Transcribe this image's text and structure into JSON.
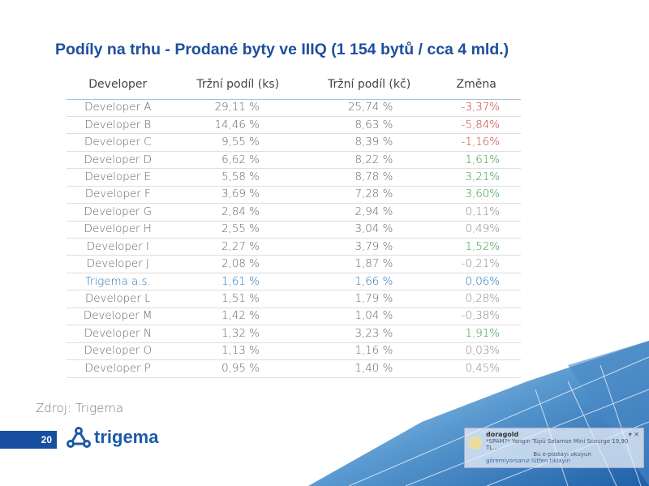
{
  "title": "Podíly na trhu - Prodané byty ve IIIQ (1 154 bytů / cca 4 mld.)",
  "table": {
    "headers": [
      "Developer",
      "Tržní podíl (ks)",
      "Tržní podíl (kč)",
      "Změna"
    ],
    "rows": [
      [
        "Developer A",
        "29,11 %",
        "25,74 %",
        "-3,37%",
        "neg"
      ],
      [
        "Developer B",
        "14,46 %",
        "8,63 %",
        "-5,84%",
        "neg"
      ],
      [
        "Developer C",
        "9,55 %",
        "8,39 %",
        "-1,16%",
        "neg"
      ],
      [
        "Developer D",
        "6,62 %",
        "8,22 %",
        "1,61%",
        "pos"
      ],
      [
        "Developer E",
        "5,58 %",
        "8,78 %",
        "3,21%",
        "pos"
      ],
      [
        "Developer F",
        "3,69 %",
        "7,28 %",
        "3,60%",
        "pos"
      ],
      [
        "Developer G",
        "2,84 %",
        "2,94 %",
        "0,11%",
        "neu"
      ],
      [
        "Developer H",
        "2,55 %",
        "3,04 %",
        "0,49%",
        "neu"
      ],
      [
        "Developer I",
        "2,27 %",
        "3,79 %",
        "1,52%",
        "pos"
      ],
      [
        "Developer J",
        "2,08 %",
        "1,87 %",
        "-0,21%",
        "neu"
      ],
      [
        "Trigema a.s.",
        "1,61 %",
        "1,66 %",
        "0,06%",
        "hl"
      ],
      [
        "Developer L",
        "1,51 %",
        "1,79 %",
        "0,28%",
        "neu"
      ],
      [
        "Developer M",
        "1,42 %",
        "1,04 %",
        "-0,38%",
        "neu"
      ],
      [
        "Developer N",
        "1,32 %",
        "3,23 %",
        "1,91%",
        "pos"
      ],
      [
        "Developer O",
        "1,13 %",
        "1,16 %",
        "0,03%",
        "neu"
      ],
      [
        "Developer P",
        "0,95 %",
        "1,40 %",
        "0,45%",
        "neu"
      ]
    ]
  },
  "source": "Zdroj: Trigema",
  "page_number": "20",
  "logo_text": "trigema",
  "notification": {
    "sender": "doragold",
    "line1": "*SPAM?* Yangın Tüpü Selamse Mini Scourge 19,90 TL...",
    "line2": "Bu e-postayı okuyun",
    "line3": "göremiyorsanız lütfen tıklayın"
  },
  "colors": {
    "title": "#1d4f9c",
    "negative": "#c0392b",
    "positive": "#2e9a3c",
    "highlight": "#1d6fb4",
    "page_bar": "#174ea0"
  }
}
